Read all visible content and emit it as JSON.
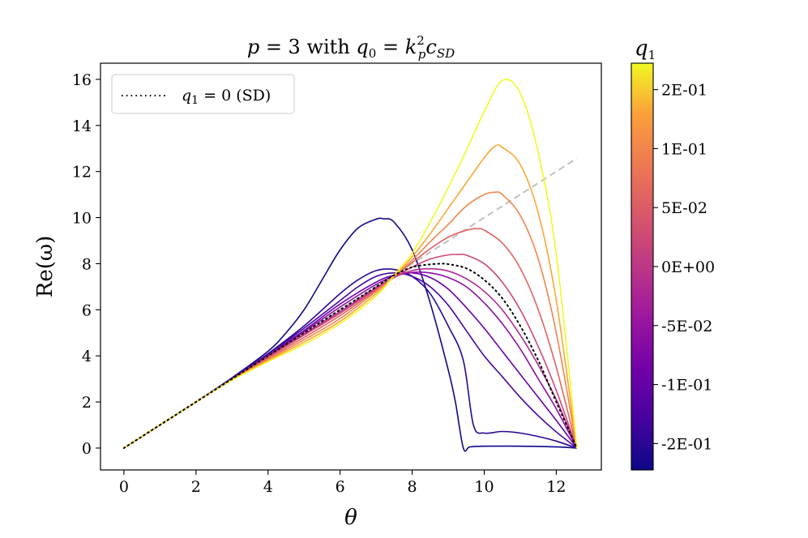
{
  "chart_data": {
    "type": "line",
    "title_parts": {
      "p": "p",
      "eq1": " = 3 with ",
      "q": "q",
      "q_sub": "0",
      "eq2": " = ",
      "k": "k",
      "k_sup": "2",
      "k_sub": "p",
      "c": "c",
      "c_sub": "SD"
    },
    "xlabel": "θ",
    "ylabel": "Re(ω)",
    "xlim": [
      -0.65,
      13.25
    ],
    "ylim": [
      -0.95,
      16.7
    ],
    "xticks": [
      "0",
      "2",
      "4",
      "6",
      "8",
      "10",
      "12"
    ],
    "yticks": [
      "0",
      "2",
      "4",
      "6",
      "8",
      "10",
      "12",
      "14",
      "16"
    ],
    "legend": {
      "placement": "top-left",
      "entry_var": "q",
      "entry_sub": "1",
      "entry_rest": " = 0 (SD)"
    },
    "colorbar": {
      "label_var": "q",
      "label_sub": "1",
      "ticks": [
        "2E-01",
        "1E-01",
        "5E-02",
        "0E+00",
        "-5E-02",
        "-1E-01",
        "-2E-01"
      ]
    },
    "reference_line": {
      "style": "dashed",
      "color": "#c0c0c0",
      "x": [
        0,
        12.57
      ],
      "y": [
        0,
        12.57
      ]
    },
    "sd_line": {
      "style": "dotted",
      "color": "#000000",
      "x": [
        0,
        1,
        2,
        3,
        4,
        5,
        6,
        7,
        7.5,
        8,
        8.5,
        8.8,
        9,
        9.5,
        10,
        10.5,
        11,
        11.5,
        12,
        12.57
      ],
      "y": [
        0,
        1,
        2,
        3,
        4,
        5,
        6,
        7.0,
        7.5,
        7.85,
        7.97,
        8.0,
        7.98,
        7.8,
        7.3,
        6.5,
        5.3,
        3.8,
        2.0,
        0
      ]
    },
    "series": [
      {
        "color": "#0d0887",
        "x": [
          0,
          1,
          2,
          3,
          4,
          4.5,
          5,
          5.5,
          6,
          6.5,
          7,
          7.2,
          7.5,
          8,
          8.5,
          9,
          9.2,
          9.42,
          9.6,
          10,
          11,
          12,
          12.57
        ],
        "y": [
          0,
          1,
          2,
          3.05,
          4.2,
          5.0,
          6.0,
          7.3,
          8.6,
          9.55,
          9.93,
          9.95,
          9.8,
          8.6,
          6.3,
          3.4,
          2.0,
          0,
          0.05,
          0.08,
          0.08,
          0.05,
          0
        ]
      },
      {
        "color": "#2a0593",
        "x": [
          0,
          2,
          3,
          4,
          5,
          6,
          6.5,
          7,
          7.5,
          8,
          8.5,
          9,
          9.42,
          9.7,
          10,
          10.5,
          11,
          11.5,
          12,
          12.57
        ],
        "y": [
          0,
          2,
          3.02,
          4.1,
          5.3,
          6.7,
          7.3,
          7.7,
          7.75,
          7.45,
          6.7,
          5.3,
          3.8,
          1.0,
          0.65,
          0.72,
          0.65,
          0.5,
          0.3,
          0
        ]
      },
      {
        "color": "#46039f",
        "x": [
          0,
          2,
          3,
          4,
          5,
          6,
          6.5,
          7,
          7.5,
          8,
          8.5,
          9,
          9.5,
          10,
          10.5,
          11,
          11.5,
          12,
          12.57
        ],
        "y": [
          0,
          2,
          3.02,
          4.08,
          5.2,
          6.4,
          7.0,
          7.45,
          7.6,
          7.45,
          7.0,
          6.2,
          5.1,
          4.0,
          3.1,
          2.2,
          1.4,
          0.7,
          0
        ]
      },
      {
        "color": "#6a00a8",
        "x": [
          0,
          2,
          3,
          4,
          5,
          6,
          7,
          7.5,
          8,
          8.5,
          9,
          9.5,
          10,
          10.5,
          11,
          11.5,
          12,
          12.57
        ],
        "y": [
          0,
          2,
          3.01,
          4.05,
          5.1,
          6.25,
          7.2,
          7.5,
          7.6,
          7.4,
          6.9,
          6.1,
          5.2,
          4.2,
          3.2,
          2.2,
          1.2,
          0
        ]
      },
      {
        "color": "#8f0da4",
        "x": [
          0,
          2,
          3,
          4,
          5,
          6,
          7,
          7.5,
          8,
          8.5,
          9,
          9.5,
          10,
          10.5,
          11,
          11.5,
          12,
          12.57
        ],
        "y": [
          0,
          2,
          3.0,
          4.02,
          5.05,
          6.12,
          7.1,
          7.45,
          7.62,
          7.6,
          7.4,
          7.0,
          6.3,
          5.4,
          4.3,
          3.0,
          1.7,
          0
        ]
      },
      {
        "color": "#b12a90",
        "x": [
          0,
          2,
          3,
          4,
          5,
          6,
          7,
          7.5,
          8,
          8.5,
          9,
          9.5,
          10,
          10.5,
          11,
          11.5,
          12,
          12.57
        ],
        "y": [
          0,
          2,
          2.99,
          3.98,
          4.95,
          5.92,
          6.95,
          7.4,
          7.7,
          7.78,
          7.68,
          7.35,
          6.8,
          6.0,
          4.9,
          3.6,
          2.1,
          0
        ]
      },
      {
        "color": "#cc4778",
        "x": [
          0,
          2,
          3,
          4,
          5,
          6,
          7,
          7.5,
          8,
          8.5,
          9,
          9.3,
          9.5,
          10,
          10.5,
          11,
          11.5,
          12,
          12.57
        ],
        "y": [
          0,
          2,
          2.98,
          3.95,
          4.9,
          5.85,
          6.9,
          7.4,
          7.85,
          8.2,
          8.38,
          8.4,
          8.37,
          8.0,
          7.2,
          6.0,
          4.4,
          2.5,
          0
        ]
      },
      {
        "color": "#e16462",
        "x": [
          0,
          2,
          3,
          4,
          5,
          6,
          7,
          7.5,
          8,
          8.5,
          9,
          9.5,
          9.8,
          10,
          10.5,
          11,
          11.5,
          12,
          12.57
        ],
        "y": [
          0,
          2,
          2.97,
          3.9,
          4.8,
          5.75,
          6.85,
          7.45,
          8.05,
          8.65,
          9.15,
          9.45,
          9.52,
          9.45,
          8.9,
          7.8,
          6.0,
          3.5,
          0
        ]
      },
      {
        "color": "#f2844b",
        "x": [
          0,
          2,
          3,
          4,
          5,
          6,
          7,
          7.5,
          8,
          8.5,
          9,
          9.5,
          10,
          10.3,
          10.5,
          11,
          11.5,
          12,
          12.57
        ],
        "y": [
          0,
          2,
          2.96,
          3.85,
          4.7,
          5.62,
          6.8,
          7.45,
          8.15,
          8.95,
          9.7,
          10.5,
          11.0,
          11.1,
          11.0,
          10.1,
          8.2,
          5.0,
          0
        ]
      },
      {
        "color": "#fca636",
        "x": [
          0,
          2,
          3,
          4,
          5,
          6,
          7,
          7.5,
          8,
          8.5,
          9,
          9.5,
          10,
          10.3,
          10.5,
          11,
          11.5,
          12,
          12.57
        ],
        "y": [
          0,
          2,
          2.95,
          3.8,
          4.6,
          5.5,
          6.7,
          7.45,
          8.3,
          9.3,
          10.4,
          11.5,
          12.6,
          13.1,
          13.05,
          12.3,
          10.2,
          6.4,
          0
        ]
      },
      {
        "color": "#f0f921",
        "x": [
          0,
          2,
          3,
          4,
          5,
          6,
          7,
          7.5,
          8,
          8.5,
          9,
          9.5,
          10,
          10.5,
          11,
          11.5,
          12,
          12.57
        ],
        "y": [
          0,
          2,
          2.94,
          3.75,
          4.5,
          5.4,
          6.6,
          7.5,
          8.45,
          9.8,
          11.3,
          12.9,
          14.6,
          15.95,
          15.4,
          12.8,
          8.4,
          0
        ]
      }
    ]
  }
}
